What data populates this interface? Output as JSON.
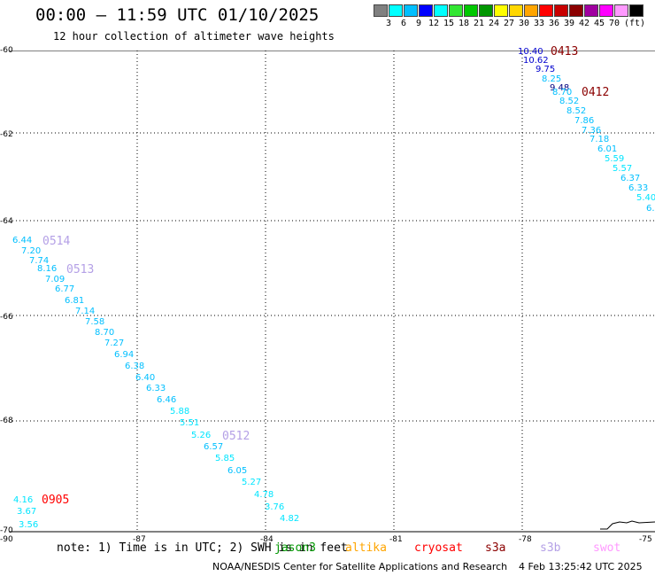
{
  "header": {
    "title": "00:00 – 11:59 UTC 01/10/2025",
    "subtitle": "12 hour collection of altimeter wave heights"
  },
  "legend": {
    "colors": [
      "#808080",
      "#00ffff",
      "#00bfff",
      "#0000ff",
      "#00ffff",
      "#32e632",
      "#00c800",
      "#009600",
      "#ffff00",
      "#ffd700",
      "#ffa500",
      "#ff0000",
      "#c80000",
      "#8b0000",
      "#a000a0",
      "#ff00ff",
      "#ff99ff",
      "#000000"
    ],
    "labels": [
      "3",
      "6",
      "9",
      "12",
      "15",
      "18",
      "21",
      "24",
      "27",
      "30",
      "33",
      "36",
      "39",
      "42",
      "45",
      "70",
      "(ft)"
    ]
  },
  "axes": {
    "y_labels": [
      "-60",
      "-62",
      "-64",
      "-66",
      "-68",
      "-70"
    ],
    "x_labels": [
      "-90",
      "-87",
      "-84",
      "-81",
      "-78",
      "-75"
    ]
  },
  "passes": [
    {
      "label": "0413",
      "color": "#8b0000"
    },
    {
      "label": "0412",
      "color": "#8b0000"
    },
    {
      "label": "0514",
      "color": "#b4a0e6"
    },
    {
      "label": "0513",
      "color": "#b4a0e6"
    },
    {
      "label": "0512",
      "color": "#b4a0e6"
    },
    {
      "label": "0905",
      "color": "#ff0000"
    }
  ],
  "points": [
    {
      "v": "10.40",
      "c": "#0000cd"
    },
    {
      "v": "10.62",
      "c": "#0000cd"
    },
    {
      "v": "9.75",
      "c": "#0000cd"
    },
    {
      "v": "8.25",
      "c": "#00bfff"
    },
    {
      "v": "9.48",
      "c": "#000080"
    },
    {
      "v": "8.70",
      "c": "#00bfff"
    },
    {
      "v": "8.52",
      "c": "#00bfff"
    },
    {
      "v": "8.52",
      "c": "#00bfff"
    },
    {
      "v": "7.86",
      "c": "#00bfff"
    },
    {
      "v": "7.36",
      "c": "#00bfff"
    },
    {
      "v": "7.18",
      "c": "#00bfff"
    },
    {
      "v": "6.01",
      "c": "#00bfff"
    },
    {
      "v": "5.59",
      "c": "#00e5ff"
    },
    {
      "v": "5.57",
      "c": "#00e5ff"
    },
    {
      "v": "6.37",
      "c": "#00bfff"
    },
    {
      "v": "6.33",
      "c": "#00bfff"
    },
    {
      "v": "5.40",
      "c": "#00e5ff"
    },
    {
      "v": "6.",
      "c": "#00bfff"
    },
    {
      "v": "6.44",
      "c": "#00bfff"
    },
    {
      "v": "7.20",
      "c": "#00bfff"
    },
    {
      "v": "7.74",
      "c": "#00bfff"
    },
    {
      "v": "8.16",
      "c": "#00bfff"
    },
    {
      "v": "7.09",
      "c": "#00bfff"
    },
    {
      "v": "6.77",
      "c": "#00bfff"
    },
    {
      "v": "6.81",
      "c": "#00bfff"
    },
    {
      "v": "7.14",
      "c": "#00bfff"
    },
    {
      "v": "7.58",
      "c": "#00bfff"
    },
    {
      "v": "8.70",
      "c": "#00bfff"
    },
    {
      "v": "7.27",
      "c": "#00bfff"
    },
    {
      "v": "6.94",
      "c": "#00bfff"
    },
    {
      "v": "6.38",
      "c": "#00bfff"
    },
    {
      "v": "6.40",
      "c": "#00bfff"
    },
    {
      "v": "6.33",
      "c": "#00bfff"
    },
    {
      "v": "6.46",
      "c": "#00bfff"
    },
    {
      "v": "5.88",
      "c": "#00e5ff"
    },
    {
      "v": "5.51",
      "c": "#00e5ff"
    },
    {
      "v": "5.26",
      "c": "#00e5ff"
    },
    {
      "v": "6.57",
      "c": "#00bfff"
    },
    {
      "v": "5.85",
      "c": "#00e5ff"
    },
    {
      "v": "6.05",
      "c": "#00bfff"
    },
    {
      "v": "5.27",
      "c": "#00e5ff"
    },
    {
      "v": "4.78",
      "c": "#00e5ff"
    },
    {
      "v": "3.76",
      "c": "#00e5ff"
    },
    {
      "v": "4.82",
      "c": "#00e5ff"
    },
    {
      "v": "4.16",
      "c": "#00e5ff"
    },
    {
      "v": "3.67",
      "c": "#00e5ff"
    },
    {
      "v": "3.56",
      "c": "#00e5ff"
    }
  ],
  "footer": {
    "note": "note: 1) Time is in UTC; 2) SWH is in feet",
    "satellites": [
      {
        "name": "jason3",
        "color": "#009600"
      },
      {
        "name": "altika",
        "color": "#ffa500"
      },
      {
        "name": "cryosat",
        "color": "#ff0000"
      },
      {
        "name": "s3a",
        "color": "#8b0000"
      },
      {
        "name": "s3b",
        "color": "#b4a0e6"
      },
      {
        "name": "swot",
        "color": "#ff99ff"
      }
    ],
    "credit": "NOAA/NESDIS Center for Satellite Applications and Research",
    "timestamp": "4 Feb 13:25:42 UTC 2025"
  }
}
